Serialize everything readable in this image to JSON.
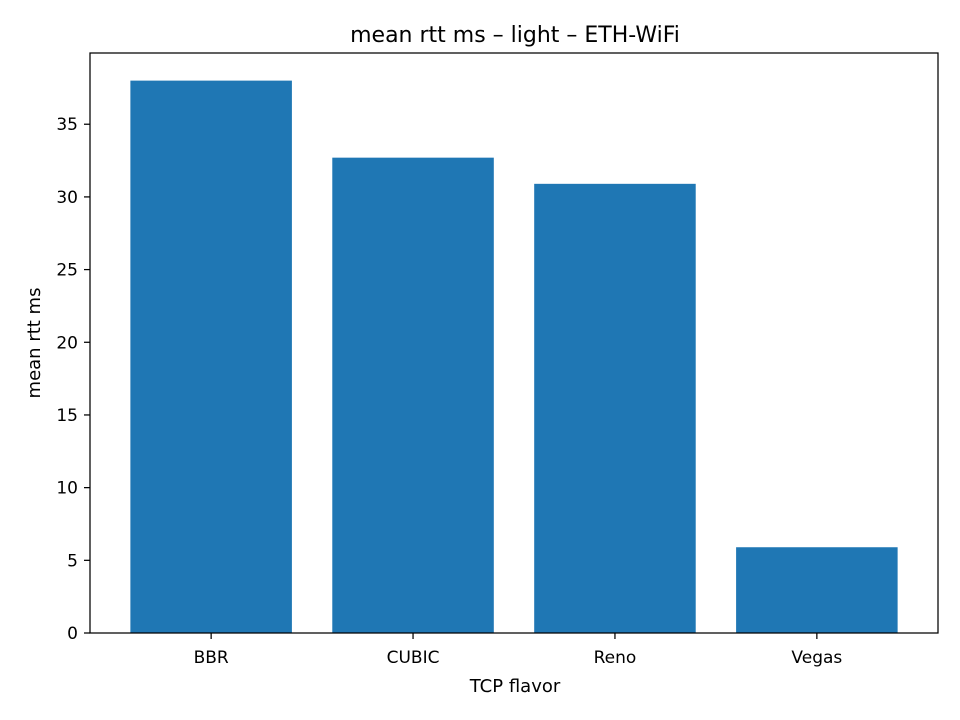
{
  "chart_data": {
    "type": "bar",
    "title": "mean rtt ms – light – ETH-WiFi",
    "xlabel": "TCP flavor",
    "ylabel": "mean rtt ms",
    "categories": [
      "BBR",
      "CUBIC",
      "Reno",
      "Vegas"
    ],
    "values": [
      38.0,
      32.7,
      30.9,
      5.9
    ],
    "ylim": [
      0,
      39.9
    ],
    "yticks": [
      0,
      5,
      10,
      15,
      20,
      25,
      30,
      35
    ],
    "bar_color": "#1f77b4",
    "grid": false,
    "legend": "none"
  }
}
